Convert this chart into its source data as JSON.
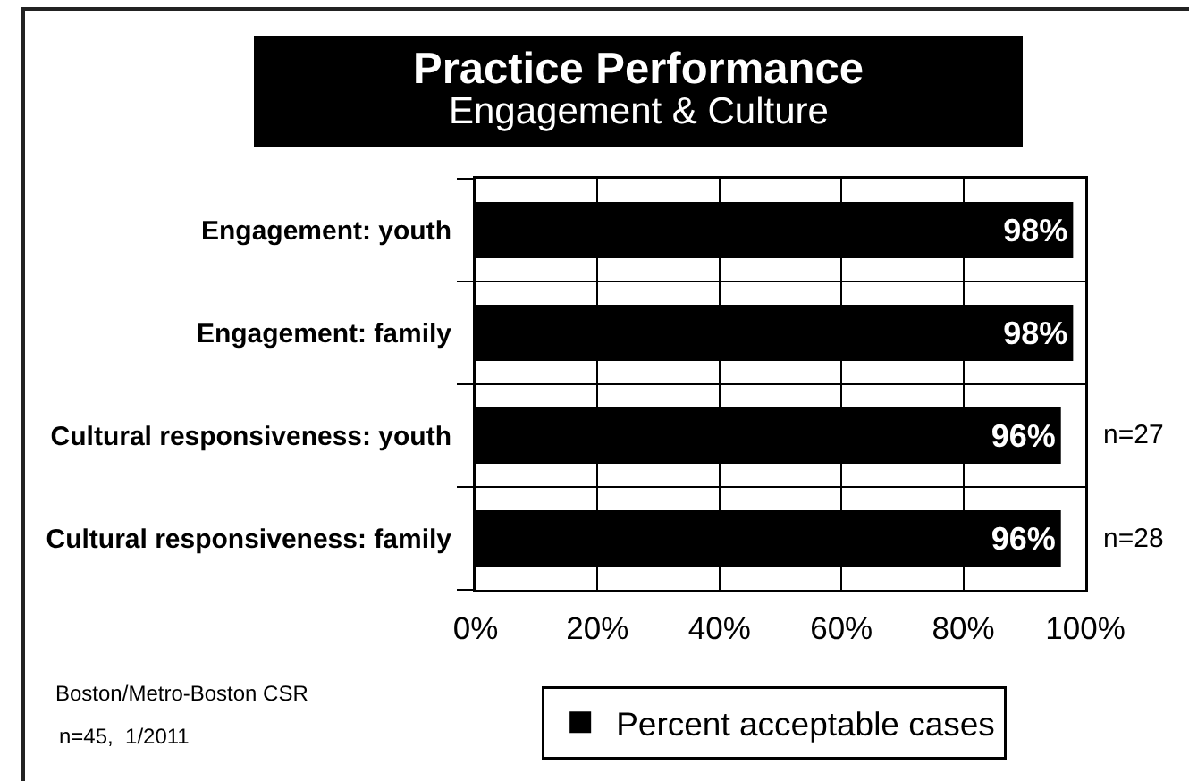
{
  "chart_data": {
    "type": "bar",
    "orientation": "horizontal",
    "title": "Practice Performance",
    "subtitle": "Engagement & Culture",
    "categories": [
      "Engagement: youth",
      "Engagement: family",
      "Cultural responsiveness: youth",
      "Cultural responsiveness: family"
    ],
    "series": [
      {
        "name": "Percent acceptable cases",
        "color": "#000000",
        "values": [
          98,
          98,
          96,
          96
        ],
        "value_labels": [
          "98%",
          "98%",
          "96%",
          "96%"
        ]
      }
    ],
    "xlim": [
      0,
      100
    ],
    "xticks": [
      {
        "value": 0,
        "label": "0%"
      },
      {
        "value": 20,
        "label": "20%"
      },
      {
        "value": 40,
        "label": "40%"
      },
      {
        "value": 60,
        "label": "60%"
      },
      {
        "value": 80,
        "label": "80%"
      },
      {
        "value": 100,
        "label": "100%"
      }
    ],
    "grid": true,
    "legend": "bottom",
    "annotations": [
      "n=27",
      "n=28",
      "Boston/Metro-Boston CSR",
      "n=45,  1/2011"
    ]
  }
}
